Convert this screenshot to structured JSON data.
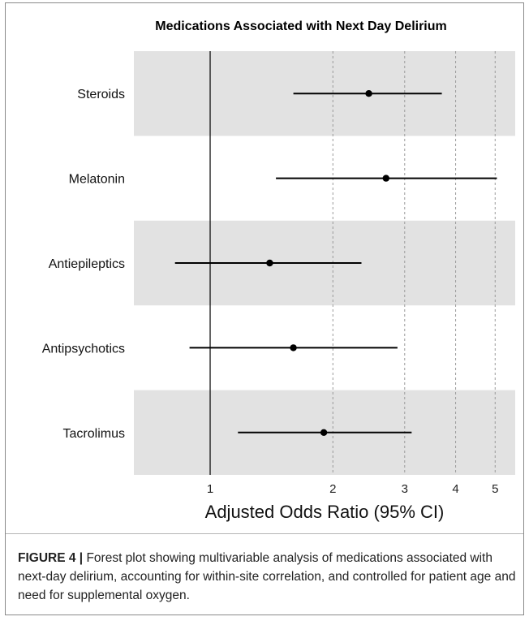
{
  "chart_data": {
    "type": "forest",
    "title": "Medications Associated with Next Day Delirium",
    "xlabel": "Adjusted Odds Ratio (95% CI)",
    "x_scale": "log",
    "xlim": [
      0.65,
      5.6
    ],
    "xticks": [
      1,
      2,
      3,
      4,
      5
    ],
    "reference_line": 1,
    "grid": "dashed vertical at 2, 3, 4, 5",
    "categories": [
      "Steroids",
      "Melatonin",
      "Antiepileptics",
      "Antipsychotics",
      "Tacrolimus"
    ],
    "estimates": [
      2.45,
      2.7,
      1.4,
      1.6,
      1.9
    ],
    "ci_low": [
      1.6,
      1.45,
      0.82,
      0.89,
      1.17
    ],
    "ci_high": [
      3.7,
      5.05,
      2.35,
      2.88,
      3.12
    ],
    "colors": {
      "band": "#e2e2e2",
      "line": "#000000",
      "grid": "#9a9a9a"
    }
  },
  "caption": {
    "label": "FIGURE 4 |",
    "text": " Forest plot showing multivariable analysis of medications associated with next-day delirium, accounting for within-site correlation, and controlled for patient age and need for supplemental oxygen."
  }
}
